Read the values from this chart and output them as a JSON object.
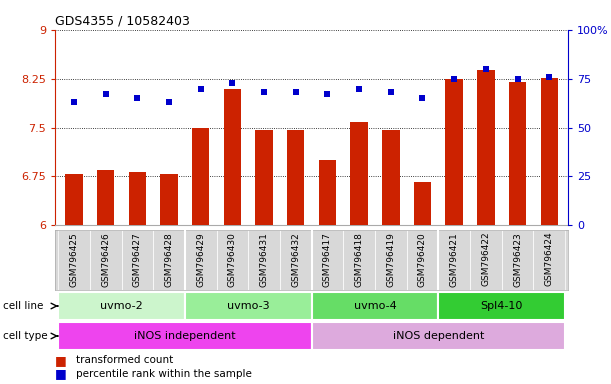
{
  "title": "GDS4355 / 10582403",
  "samples": [
    "GSM796425",
    "GSM796426",
    "GSM796427",
    "GSM796428",
    "GSM796429",
    "GSM796430",
    "GSM796431",
    "GSM796432",
    "GSM796417",
    "GSM796418",
    "GSM796419",
    "GSM796420",
    "GSM796421",
    "GSM796422",
    "GSM796423",
    "GSM796424"
  ],
  "transformed_count": [
    6.78,
    6.84,
    6.82,
    6.78,
    7.5,
    8.1,
    7.46,
    7.46,
    7.0,
    7.58,
    7.46,
    6.66,
    8.25,
    8.38,
    8.2,
    8.26
  ],
  "percentile_rank": [
    63,
    67,
    65,
    63,
    70,
    73,
    68,
    68,
    67,
    70,
    68,
    65,
    75,
    80,
    75,
    76
  ],
  "ylim_left": [
    6,
    9
  ],
  "ylim_right": [
    0,
    100
  ],
  "yticks_left": [
    6,
    6.75,
    7.5,
    8.25,
    9
  ],
  "yticks_right": [
    0,
    25,
    50,
    75,
    100
  ],
  "cell_line_groups": [
    {
      "label": "uvmo-2",
      "start": 0,
      "end": 3
    },
    {
      "label": "uvmo-3",
      "start": 4,
      "end": 7
    },
    {
      "label": "uvmo-4",
      "start": 8,
      "end": 11
    },
    {
      "label": "Spl4-10",
      "start": 12,
      "end": 15
    }
  ],
  "cell_line_colors": [
    "#ccf5cc",
    "#99ee99",
    "#66dd66",
    "#33cc33"
  ],
  "cell_type_groups": [
    {
      "label": "iNOS independent",
      "start": 0,
      "end": 7
    },
    {
      "label": "iNOS dependent",
      "start": 8,
      "end": 15
    }
  ],
  "cell_type_colors": [
    "#ee44ee",
    "#ddaadd"
  ],
  "bar_color": "#cc2200",
  "dot_color": "#0000cc",
  "axis_label_color_left": "#cc2200",
  "axis_label_color_right": "#0000cc",
  "background_color": "#ffffff",
  "sample_bg_color": "#d8d8d8"
}
